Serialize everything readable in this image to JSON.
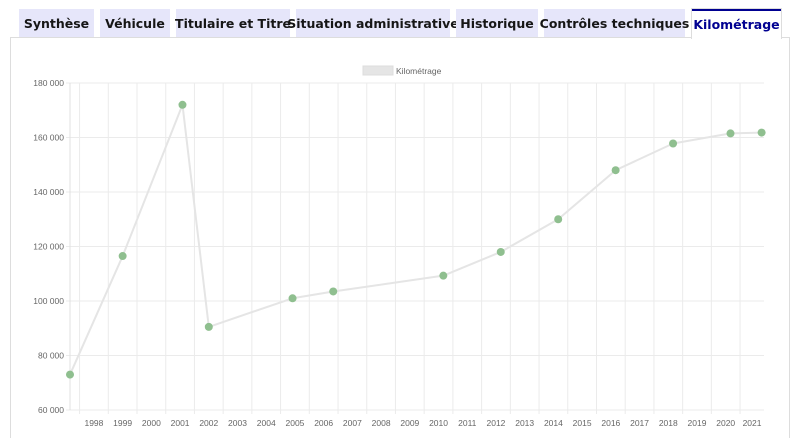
{
  "tabs": [
    {
      "label": "Synthèse",
      "active": false
    },
    {
      "label": "Véhicule",
      "active": false
    },
    {
      "label": "Titulaire et Titre",
      "active": false
    },
    {
      "label": "Situation administrative",
      "active": false
    },
    {
      "label": "Historique",
      "active": false
    },
    {
      "label": "Contrôles techniques",
      "active": false
    },
    {
      "label": "Kilométrage",
      "active": true
    }
  ],
  "colors": {
    "accent": "#000091",
    "tab_bg": "#e6e6fa",
    "series_line": "#e5e5e5",
    "point": "#8fbf8f"
  },
  "chart_data": {
    "type": "line",
    "title": "",
    "xlabel": "",
    "ylabel": "",
    "legend": {
      "label": "Kilométrage",
      "placement": "top"
    },
    "ylim": [
      60000,
      180000
    ],
    "y_ticks": [
      60000,
      80000,
      100000,
      120000,
      140000,
      160000,
      180000
    ],
    "y_tick_labels": [
      "60 000",
      "80 000",
      "100 000",
      "120 000",
      "140 000",
      "160 000",
      "180 000"
    ],
    "x_ticks": [
      "1998",
      "1999",
      "2000",
      "2001",
      "2002",
      "2003",
      "2004",
      "2005",
      "2006",
      "2007",
      "2008",
      "2009",
      "2010",
      "2011",
      "2012",
      "2013",
      "2014",
      "2015",
      "2016",
      "2017",
      "2018",
      "2019",
      "2020",
      "2021"
    ],
    "grid": true,
    "series": [
      {
        "name": "Kilométrage",
        "points": [
          {
            "x": "1997-09",
            "y": 73000
          },
          {
            "x": "1999-07",
            "y": 116500
          },
          {
            "x": "2001-08",
            "y": 172000
          },
          {
            "x": "2002-07",
            "y": 90500
          },
          {
            "x": "2005-06",
            "y": 101000
          },
          {
            "x": "2006-11",
            "y": 103500
          },
          {
            "x": "2010-09",
            "y": 109300
          },
          {
            "x": "2012-09",
            "y": 118000
          },
          {
            "x": "2014-09",
            "y": 130000
          },
          {
            "x": "2016-09",
            "y": 148000
          },
          {
            "x": "2018-09",
            "y": 157800
          },
          {
            "x": "2020-09",
            "y": 161500
          },
          {
            "x": "2021-10",
            "y": 161800
          }
        ]
      }
    ]
  }
}
